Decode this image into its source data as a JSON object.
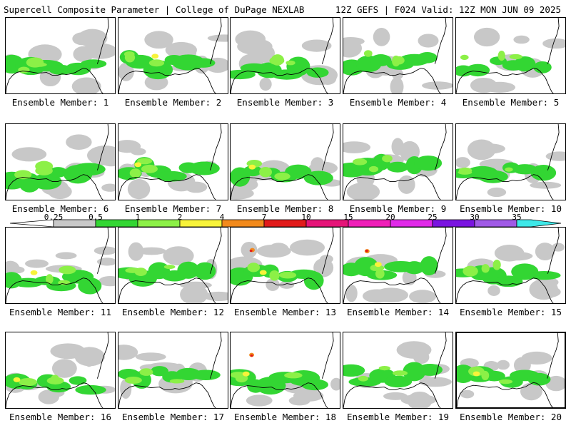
{
  "header": {
    "title": "Supercell Composite Parameter | College of DuPage NEXLAB",
    "run_info": "12Z GEFS | F024 Valid: 12Z MON JUN 09 2025"
  },
  "colors": {
    "low": "#c8c8c8",
    "green": "#33d633",
    "light_green": "#8cf047",
    "yellow": "#f7f33a",
    "orange": "#f28a1c",
    "red": "#e11b1b"
  },
  "selected_member": 20,
  "members": [
    {
      "label": "Ensemble Member: 1"
    },
    {
      "label": "Ensemble Member: 2"
    },
    {
      "label": "Ensemble Member: 3"
    },
    {
      "label": "Ensemble Member: 4"
    },
    {
      "label": "Ensemble Member: 5"
    },
    {
      "label": "Ensemble Member: 6"
    },
    {
      "label": "Ensemble Member: 7"
    },
    {
      "label": "Ensemble Member: 8"
    },
    {
      "label": "Ensemble Member: 9"
    },
    {
      "label": "Ensemble Member: 10"
    },
    {
      "label": "Ensemble Member: 11"
    },
    {
      "label": "Ensemble Member: 12"
    },
    {
      "label": "Ensemble Member: 13"
    },
    {
      "label": "Ensemble Member: 14"
    },
    {
      "label": "Ensemble Member: 15"
    },
    {
      "label": "Ensemble Member: 16"
    },
    {
      "label": "Ensemble Member: 17"
    },
    {
      "label": "Ensemble Member: 18"
    },
    {
      "label": "Ensemble Member: 19"
    },
    {
      "label": "Ensemble Member: 20"
    }
  ],
  "color_scale": {
    "labels": [
      "0.25",
      "0.5",
      "1",
      "2",
      "4",
      "7",
      "10",
      "15",
      "20",
      "25",
      "30",
      "35"
    ],
    "colors": [
      "#c8c8c8",
      "#33d633",
      "#8cf047",
      "#f7f33a",
      "#f28a1c",
      "#e11b1b",
      "#e51478",
      "#ef1fb8",
      "#e02ae8",
      "#7a14e0",
      "#a05ae6",
      "#3ee8e8"
    ]
  }
}
